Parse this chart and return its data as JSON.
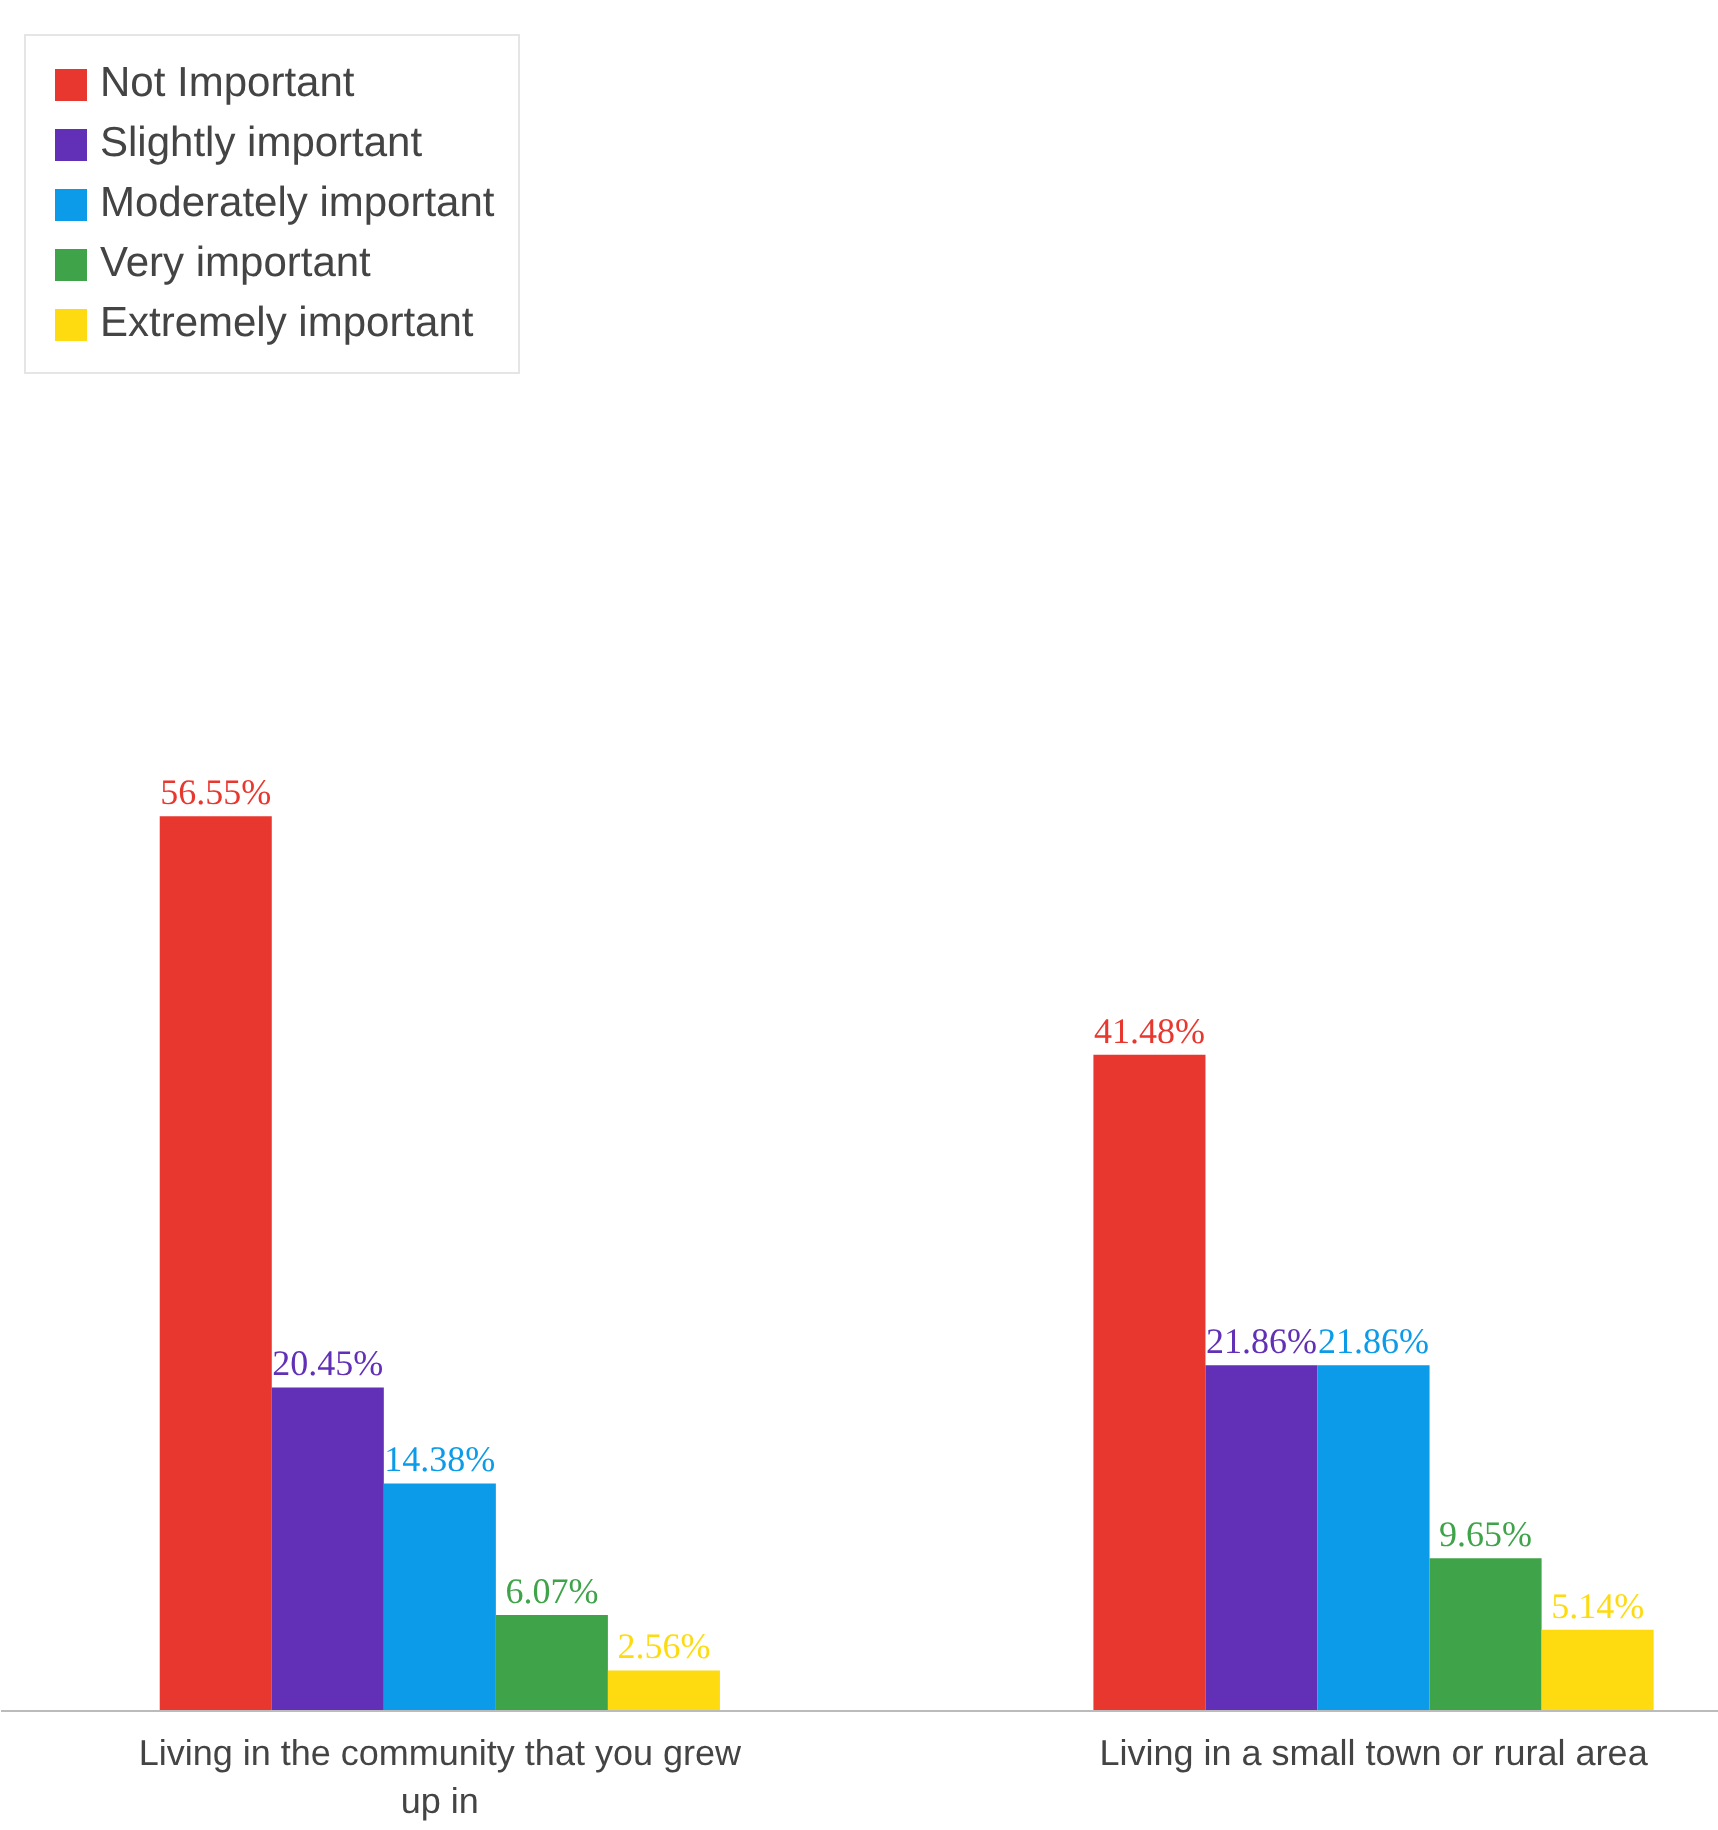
{
  "chart_data": {
    "type": "bar",
    "categories": [
      "Living in the community that you grew up in",
      "Living in a small town or rural area"
    ],
    "series": [
      {
        "name": "Not Important",
        "color": "#e8372f",
        "values": [
          56.55,
          41.48
        ],
        "value_labels": [
          "56.55%",
          "41.48%"
        ]
      },
      {
        "name": "Slightly important",
        "color": "#6130b6",
        "values": [
          20.45,
          21.86
        ],
        "value_labels": [
          "20.45%",
          "21.86%"
        ]
      },
      {
        "name": "Moderately important",
        "color": "#0b9be8",
        "values": [
          14.38,
          21.86
        ],
        "value_labels": [
          "14.38%",
          "21.86%"
        ]
      },
      {
        "name": "Very important",
        "color": "#3fa34a",
        "values": [
          6.07,
          9.65
        ],
        "value_labels": [
          "6.07%",
          "9.65%"
        ]
      },
      {
        "name": "Extremely important",
        "color": "#fedb10",
        "values": [
          2.56,
          5.14
        ],
        "value_labels": [
          "2.56%",
          "5.14%"
        ]
      }
    ],
    "legend": "top left",
    "grid": false
  }
}
